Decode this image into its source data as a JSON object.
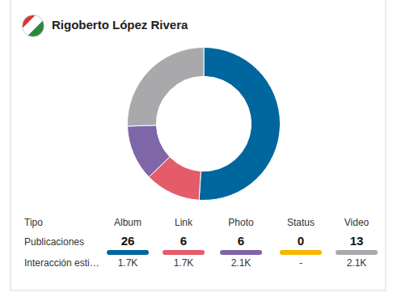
{
  "header": {
    "title": "Rigoberto López Rivera"
  },
  "chart_data": {
    "type": "doughnut",
    "categories": [
      "Album",
      "Link",
      "Photo",
      "Status",
      "Video"
    ],
    "values": [
      26,
      6,
      6,
      0,
      13
    ],
    "colors": [
      "#00669e",
      "#e45c69",
      "#7f66a9",
      "#f5b700",
      "#a9a8ab"
    ]
  },
  "table": {
    "column_header": "Tipo",
    "rows": [
      {
        "label": "Publicaciones"
      },
      {
        "label": "Interacción esti…",
        "cells": [
          "1.7K",
          "1.7K",
          "2.1K",
          "-",
          "2.1K"
        ]
      }
    ]
  }
}
